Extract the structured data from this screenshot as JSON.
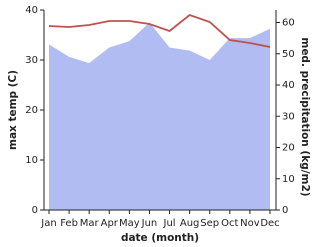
{
  "chart_data": {
    "type": "line-area",
    "xlabel": "date (month)",
    "ylabel": "max temp (C)",
    "y2label": "med. precipitation (kg/m2)",
    "categories": [
      "Jan",
      "Feb",
      "Mar",
      "Apr",
      "May",
      "Jun",
      "Jul",
      "Aug",
      "Sep",
      "Oct",
      "Nov",
      "Dec"
    ],
    "ylim": [
      0,
      40
    ],
    "yticks": [
      0,
      10,
      20,
      30,
      40
    ],
    "y2lim": [
      0,
      64
    ],
    "y2ticks": [
      0,
      10,
      20,
      30,
      40,
      50,
      60
    ],
    "series": [
      {
        "kind": "area",
        "axis": "y2",
        "color": "#b0bcf2",
        "values": [
          53,
          49,
          47,
          52,
          54,
          60,
          52,
          51,
          48,
          55,
          55,
          58
        ]
      },
      {
        "kind": "line",
        "axis": "y",
        "color": "#c0504d",
        "values": [
          36.8,
          36.6,
          37,
          37.8,
          37.8,
          37.2,
          35.8,
          39,
          37.6,
          34,
          33.4,
          32.6
        ]
      }
    ]
  }
}
